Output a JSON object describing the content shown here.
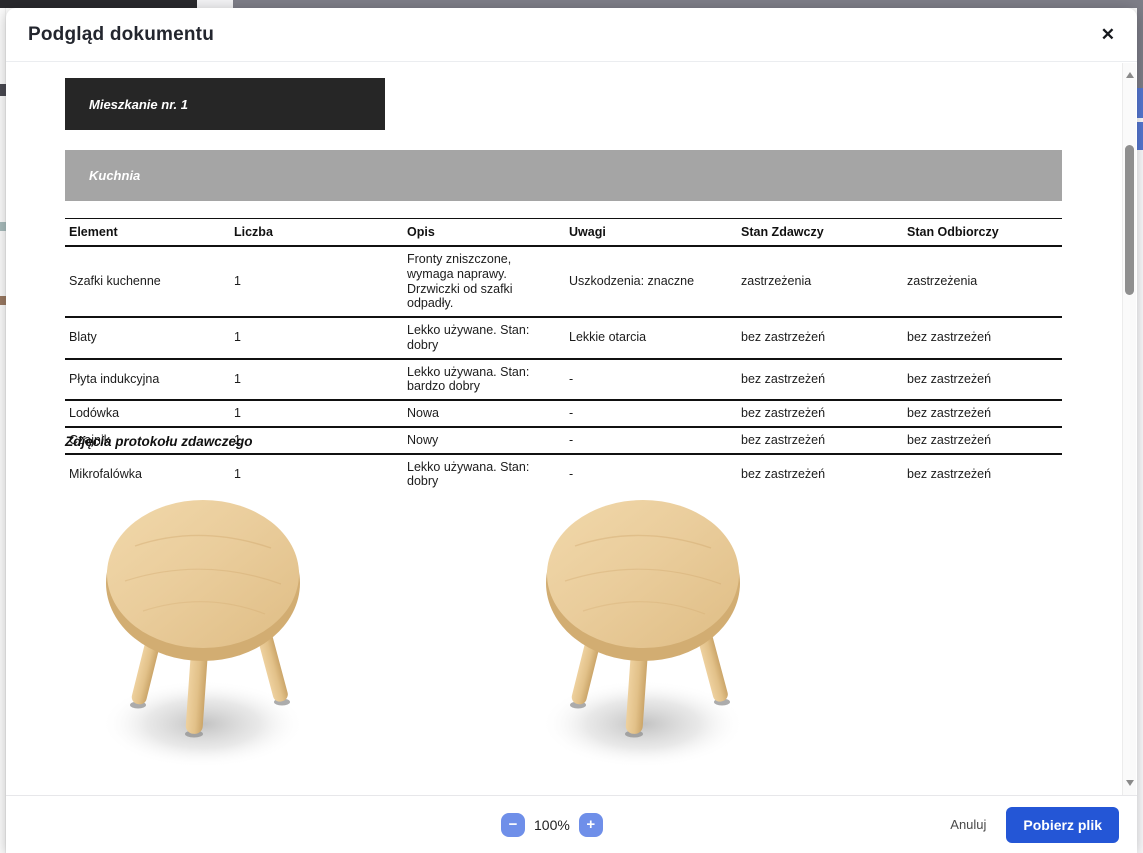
{
  "modal": {
    "title": "Podgląd dokumentu",
    "close_icon": "✕"
  },
  "document": {
    "apartment_header": "Mieszkanie nr. 1",
    "room_header": "Kuchnia",
    "table": {
      "columns": [
        "Element",
        "Liczba",
        "Opis",
        "Uwagi",
        "Stan Zdawczy",
        "Stan Odbiorczy"
      ],
      "rows": [
        [
          "Szafki kuchenne",
          "1",
          "Fronty zniszczone, wymaga naprawy. Drzwiczki od szafki odpadły.",
          "Uszkodzenia: znaczne",
          "zastrzeżenia",
          "zastrzeżenia"
        ],
        [
          "Blaty",
          "1",
          "Lekko używane. Stan: dobry",
          "Lekkie otarcia",
          "bez zastrzeżeń",
          "bez zastrzeżeń"
        ],
        [
          "Płyta indukcyjna",
          "1",
          "Lekko używana. Stan: bardzo dobry",
          "-",
          "bez zastrzeżeń",
          "bez zastrzeżeń"
        ],
        [
          "Lodówka",
          "1",
          "Nowa",
          "-",
          "bez zastrzeżeń",
          "bez zastrzeżeń"
        ],
        [
          "Czajnik",
          "1",
          "Nowy",
          "-",
          "bez zastrzeżeń",
          "bez zastrzeżeń"
        ],
        [
          "Mikrofalówka",
          "1",
          "Lekko używana. Stan: dobry",
          "-",
          "bez zastrzeżeń",
          "bez zastrzeżeń"
        ]
      ]
    },
    "photos_heading": "Zdjęcia protokołu zdawczego",
    "photos": [
      "stool-photo",
      "stool-photo"
    ]
  },
  "footer": {
    "zoom_out_label": "−",
    "zoom_level": "100%",
    "zoom_in_label": "+",
    "cancel_label": "Anuluj",
    "download_label": "Pobierz plik"
  },
  "colors": {
    "accent_blue": "#2456d6",
    "soft_blue": "#6f8fe9",
    "apartment_header_bg": "#262626",
    "room_header_bg": "#a5a5a5"
  }
}
